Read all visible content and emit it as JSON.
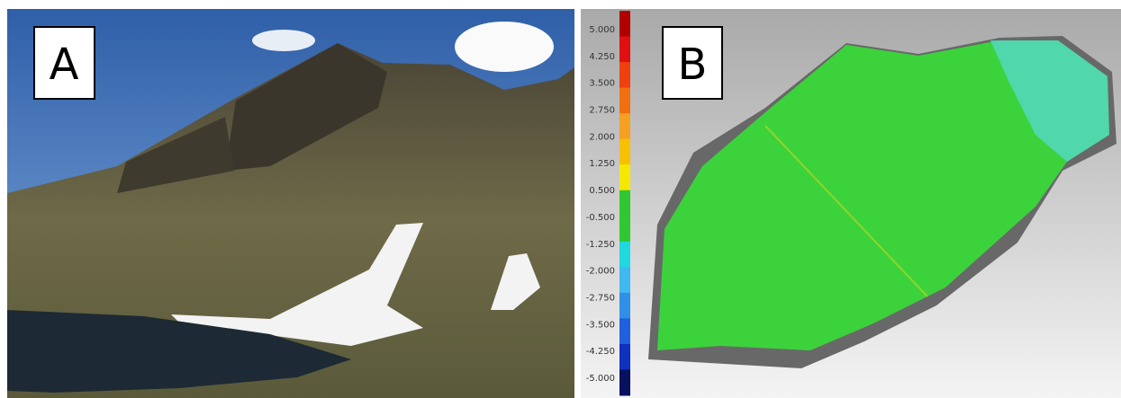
{
  "panels": [
    {
      "label": "A"
    },
    {
      "label": "B"
    }
  ],
  "colorbar": {
    "labels": [
      "5.000",
      "4.250",
      "3.500",
      "2.750",
      "2.000",
      "1.250",
      "0.500",
      "-0.500",
      "-1.250",
      "-2.000",
      "-2.750",
      "-3.500",
      "-4.250",
      "-5.000"
    ],
    "colors": [
      "#b00000",
      "#e01010",
      "#f04010",
      "#f07010",
      "#f5a020",
      "#f8c000",
      "#f5e800",
      "#30c830",
      "#30c830",
      "#20d8e0",
      "#40b8f0",
      "#3090e8",
      "#2060e0",
      "#1030c0",
      "#081060"
    ]
  }
}
